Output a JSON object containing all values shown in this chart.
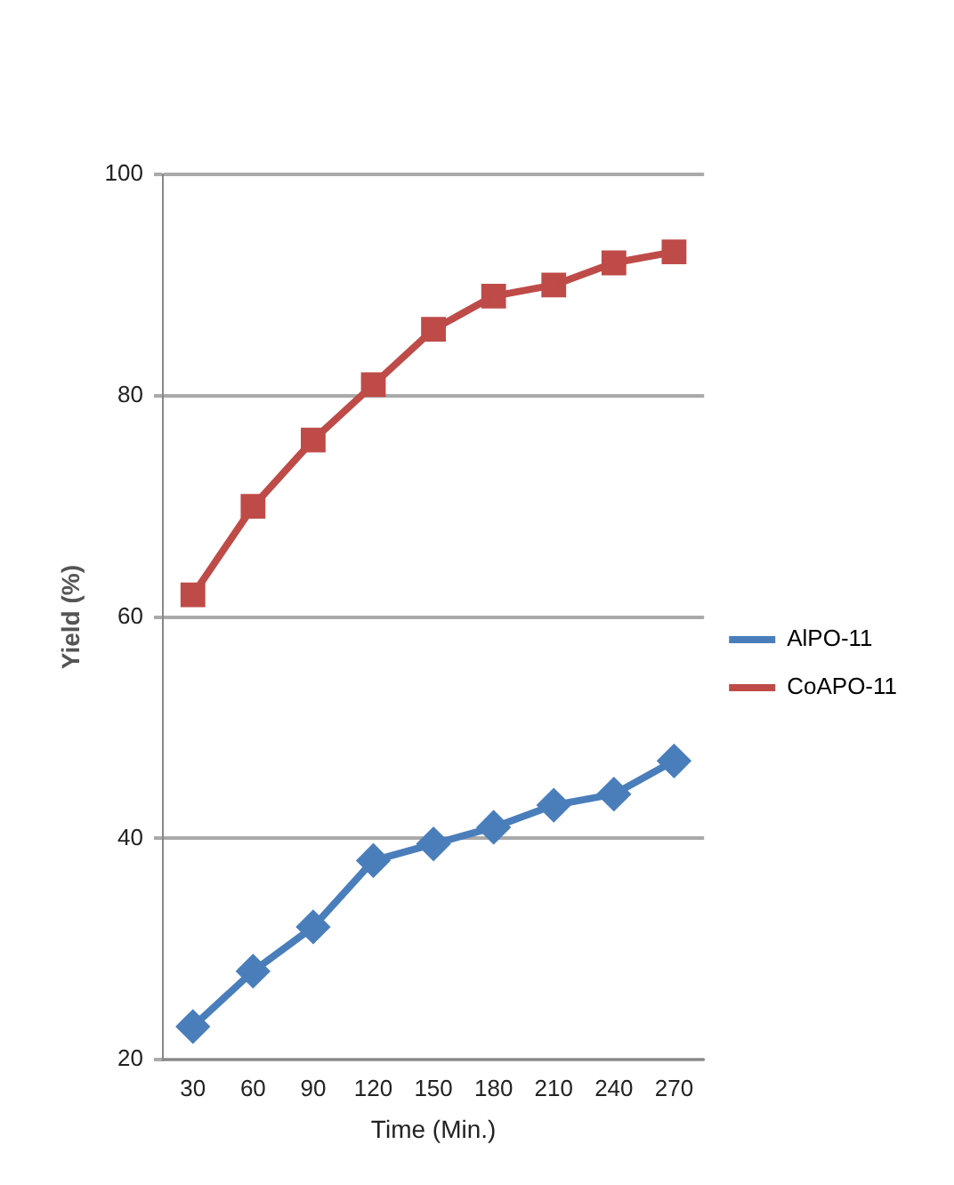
{
  "chart_data": {
    "type": "line",
    "xlabel": "Time (Min.)",
    "ylabel": "Yield (%)",
    "categories": [
      "30",
      "60",
      "90",
      "120",
      "150",
      "180",
      "210",
      "240",
      "270"
    ],
    "series": [
      {
        "name": "AlPO-11",
        "color": "#4a7ebb",
        "marker": "diamond",
        "values": [
          23,
          28,
          32,
          38,
          39.5,
          41,
          43,
          44,
          47
        ]
      },
      {
        "name": "CoAPO-11",
        "color": "#be4b48",
        "marker": "square",
        "values": [
          62,
          70,
          76,
          81,
          86,
          89,
          90,
          92,
          93
        ]
      }
    ],
    "ylim": [
      20,
      100
    ],
    "yticks": [
      20,
      40,
      60,
      80,
      100
    ],
    "grid": "y",
    "legend": "right",
    "line_style": "solid"
  }
}
